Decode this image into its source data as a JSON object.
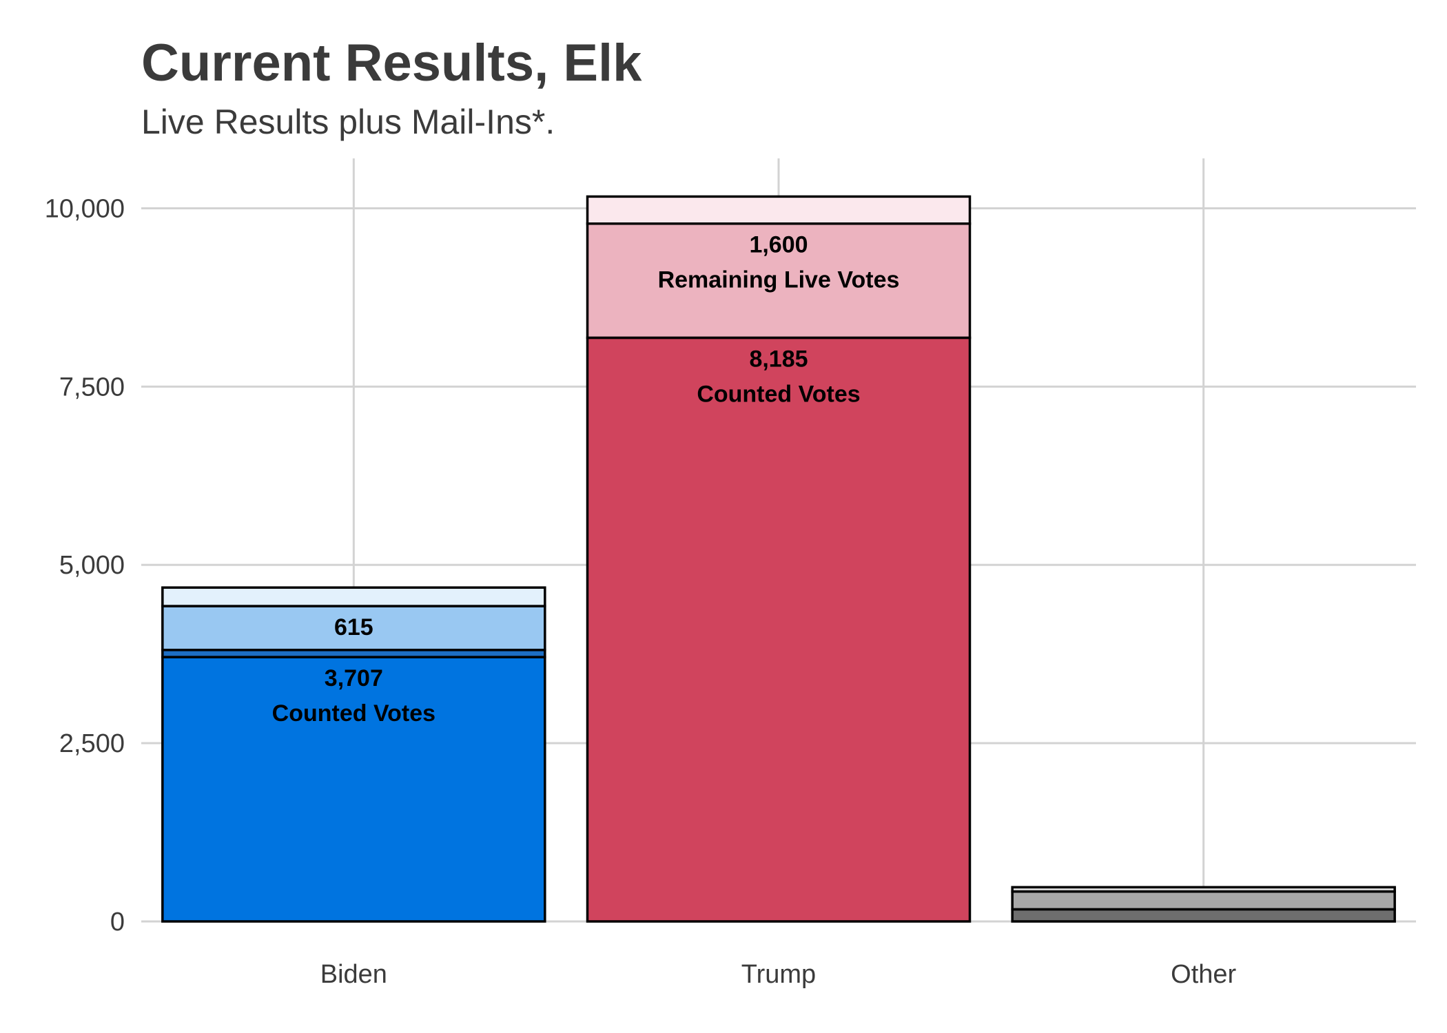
{
  "chart_data": {
    "type": "bar",
    "stacked": true,
    "title": "Current Results, Elk",
    "subtitle": "Live Results plus Mail-Ins*.",
    "xlabel": "",
    "ylabel": "",
    "ylim": [
      0,
      10700
    ],
    "y_ticks": [
      0,
      2500,
      5000,
      7500,
      10000
    ],
    "y_tick_labels": [
      "0",
      "2,500",
      "5,000",
      "7,500",
      "10,000"
    ],
    "grid": true,
    "categories": [
      "Biden",
      "Trump",
      "Other"
    ],
    "bars": [
      {
        "category": "Biden",
        "segments": [
          {
            "value": 3707,
            "color": "#0074e0",
            "labels": [
              "3,707",
              "Counted Votes"
            ]
          },
          {
            "value": 100,
            "color": "#1d6fc4",
            "labels": []
          },
          {
            "value": 615,
            "color": "#99c8f2",
            "labels": [
              "615"
            ]
          },
          {
            "value": 260,
            "color": "#e3f1fc",
            "labels": []
          }
        ]
      },
      {
        "category": "Trump",
        "segments": [
          {
            "value": 8185,
            "color": "#d0445d",
            "labels": [
              "8,185",
              "Counted Votes"
            ]
          },
          {
            "value": 1600,
            "color": "#ecb3bf",
            "labels": [
              "1,600",
              "Remaining Live Votes"
            ]
          },
          {
            "value": 380,
            "color": "#fbe8ed",
            "labels": []
          }
        ]
      },
      {
        "category": "Other",
        "segments": [
          {
            "value": 170,
            "color": "#6e6e6e",
            "labels": []
          },
          {
            "value": 250,
            "color": "#a8a8a8",
            "labels": []
          },
          {
            "value": 60,
            "color": "#e0e0e0",
            "labels": []
          }
        ]
      }
    ]
  }
}
